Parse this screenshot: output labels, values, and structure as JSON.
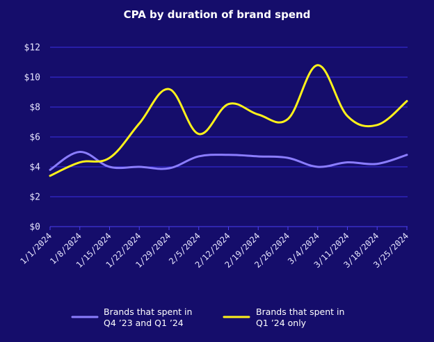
{
  "chart_data": {
    "type": "line",
    "title": "CPA by duration of brand spend",
    "xlabel": "",
    "ylabel": "",
    "ylim": [
      0,
      12
    ],
    "yticks": [
      {
        "value": 0,
        "label": "$0"
      },
      {
        "value": 2,
        "label": "$2"
      },
      {
        "value": 4,
        "label": "$4"
      },
      {
        "value": 6,
        "label": "$6"
      },
      {
        "value": 8,
        "label": "$8"
      },
      {
        "value": 10,
        "label": "$10"
      },
      {
        "value": 12,
        "label": "$12"
      }
    ],
    "grid": true,
    "legend_position": "bottom",
    "categories": [
      "1/1/2024",
      "1/8/2024",
      "1/15/2024",
      "1/22/2024",
      "1/29/2024",
      "2/5/2024",
      "2/12/2024",
      "2/19/2024",
      "2/26/2024",
      "3/4/2024",
      "3/11/2024",
      "3/18/2024",
      "3/25/2024"
    ],
    "series": [
      {
        "name_lines": [
          "Brands that spent in",
          "Q4 ’23 and Q1 ’24"
        ],
        "color": "#8b7dff",
        "values": [
          3.8,
          5.0,
          4.0,
          4.0,
          3.9,
          4.7,
          4.8,
          4.7,
          4.6,
          4.0,
          4.3,
          4.2,
          4.8
        ]
      },
      {
        "name_lines": [
          "Brands that spent in",
          "Q1 ’24 only"
        ],
        "color": "#fff21a",
        "values": [
          3.4,
          4.3,
          4.6,
          6.9,
          9.2,
          6.2,
          8.2,
          7.5,
          7.2,
          10.8,
          7.4,
          6.8,
          8.4
        ]
      }
    ]
  }
}
